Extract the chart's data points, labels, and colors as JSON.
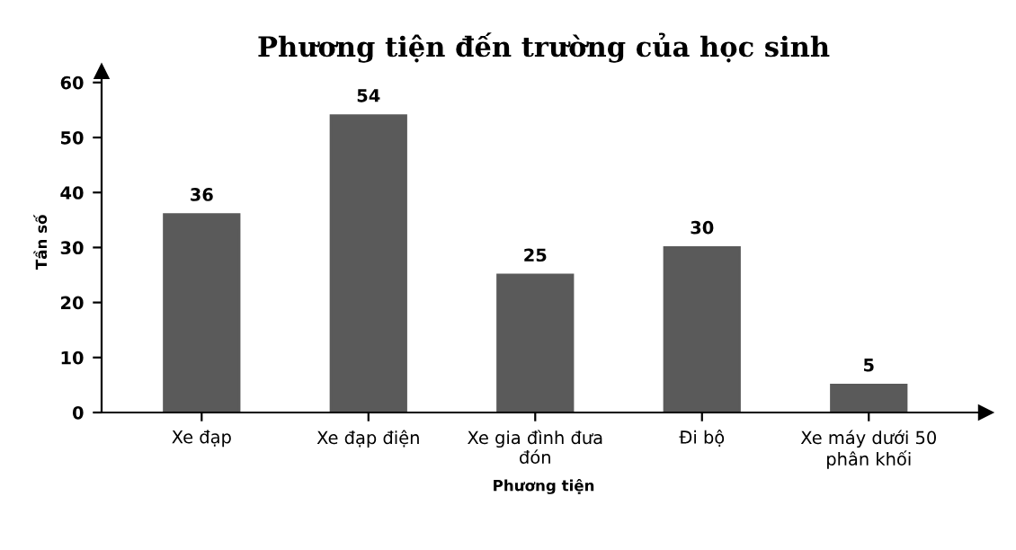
{
  "chart_data": {
    "type": "bar",
    "title": "Phương tiện đến trường của học sinh",
    "xlabel": "Phương tiện",
    "ylabel": "Tần số",
    "categories": [
      "Xe đạp",
      "Xe đạp điện",
      "Xe gia đình đưa\nđón",
      "Đi bộ",
      "Xe máy dưới 50\nphân khối"
    ],
    "values": [
      36,
      54,
      25,
      30,
      5
    ],
    "color": "#5a5a5a",
    "ylim": [
      0,
      62
    ],
    "yticks": [
      0,
      10,
      20,
      30,
      40,
      50,
      60
    ],
    "grid": false,
    "data_labels": true
  }
}
